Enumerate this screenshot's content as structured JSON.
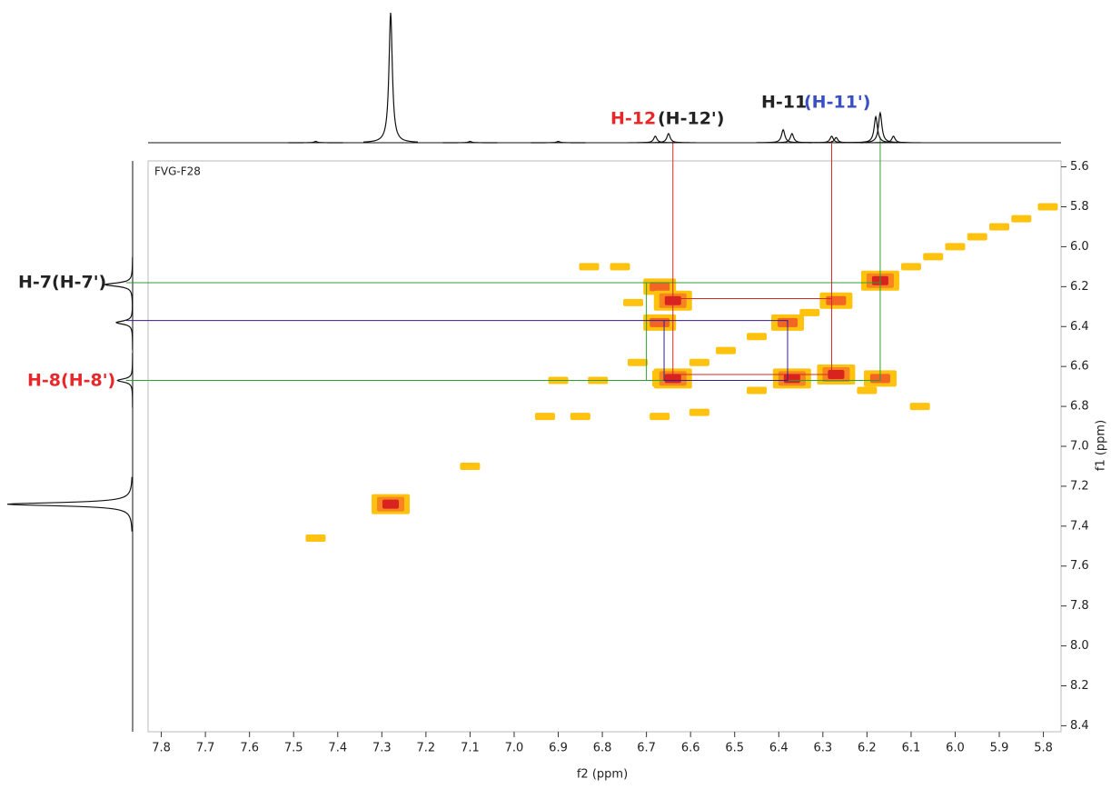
{
  "chart_data": {
    "type": "nmr2d",
    "annotation": "FVG-F28",
    "x_label": "f2 (ppm)",
    "y_label": "f1 (ppm)",
    "xlim": [
      7.83,
      5.76
    ],
    "ylim": [
      5.57,
      8.43
    ],
    "xticks": [
      7.8,
      7.7,
      7.6,
      7.5,
      7.4,
      7.3,
      7.2,
      7.1,
      {
        "value": 7,
        "label": "7.0"
      },
      6.9,
      6.8,
      6.7,
      6.6,
      6.5,
      6.4,
      6.3,
      6.2,
      6.1,
      {
        "value": 6,
        "label": "6.0"
      },
      5.9,
      5.8
    ],
    "yticks": [
      5.6,
      5.8,
      {
        "value": 6,
        "label": "6.0"
      },
      6.2,
      6.4,
      6.6,
      6.8,
      {
        "value": 7,
        "label": "7.0"
      },
      7.2,
      7.4,
      7.6,
      7.8,
      {
        "value": 8,
        "label": "8.0"
      },
      8.2,
      8.4
    ],
    "peaks": {
      "x": [
        7.28,
        7.45,
        7.1,
        6.65,
        6.58,
        6.52,
        6.45,
        6.38,
        6.33,
        6.27,
        6.17,
        6.1,
        6.05,
        6.0,
        5.95,
        5.9,
        5.85,
        5.79,
        6.67,
        6.64,
        6.67,
        6.64,
        6.37,
        6.27,
        6.17,
        6.83,
        6.76,
        6.9,
        6.81,
        6.93,
        6.85,
        6.67,
        6.58,
        6.72,
        6.73,
        6.45,
        6.2,
        6.08
      ],
      "y": [
        7.29,
        7.46,
        7.1,
        6.66,
        6.58,
        6.52,
        6.45,
        6.38,
        6.33,
        6.27,
        6.17,
        6.1,
        6.05,
        6.0,
        5.95,
        5.9,
        5.86,
        5.8,
        6.2,
        6.27,
        6.38,
        6.66,
        6.66,
        6.64,
        6.66,
        6.1,
        6.1,
        6.67,
        6.67,
        6.85,
        6.85,
        6.85,
        6.83,
        6.58,
        6.28,
        6.72,
        6.72,
        6.8
      ],
      "intensity": [
        3,
        1,
        1,
        2,
        1,
        1,
        1,
        2,
        1,
        2,
        3,
        1,
        1,
        1,
        1,
        1,
        1,
        1,
        2,
        3,
        2,
        3,
        3,
        3,
        2,
        1,
        1,
        1,
        1,
        1,
        1,
        1,
        1,
        1,
        1,
        1,
        1,
        1
      ]
    },
    "top_spectrum": {
      "x": [
        7.28,
        7.45,
        7.1,
        6.9,
        6.68,
        6.65,
        6.39,
        6.37,
        6.28,
        6.27,
        6.18,
        6.17,
        6.14
      ],
      "height": [
        1.0,
        0.01,
        0.01,
        0.01,
        0.05,
        0.07,
        0.1,
        0.07,
        0.05,
        0.04,
        0.2,
        0.23,
        0.05
      ]
    },
    "left_spectrum": {
      "y": [
        7.29,
        6.19,
        6.38,
        6.67
      ],
      "height": [
        1.0,
        0.22,
        0.13,
        0.12
      ]
    },
    "guides": [
      {
        "color": "#2ca02c",
        "x": [
          7.88,
          6.17
        ],
        "y": [
          6.18,
          6.18
        ]
      },
      {
        "color": "#2ca02c",
        "x": [
          7.88,
          6.17
        ],
        "y": [
          6.67,
          6.67
        ]
      },
      {
        "color": "#2ca02c",
        "x": [
          6.17,
          6.17
        ],
        "y": [
          5.45,
          6.67
        ]
      },
      {
        "color": "#2ca02c",
        "x": [
          6.7,
          6.7
        ],
        "y": [
          6.18,
          6.67
        ]
      },
      {
        "color": "#d62728",
        "x": [
          6.64,
          6.64,
          6.28,
          6.28
        ],
        "y": [
          5.47,
          6.64,
          6.64,
          5.47
        ]
      },
      {
        "color": "#d62728",
        "x": [
          6.64,
          6.28
        ],
        "y": [
          6.26,
          6.26
        ]
      },
      {
        "color": "#3b1c8c",
        "x": [
          7.88,
          6.38,
          6.38,
          6.66,
          6.66
        ],
        "y": [
          6.37,
          6.37,
          6.67,
          6.67,
          6.37
        ]
      }
    ],
    "labels": {
      "h12": "H-12",
      "h12p": "(H-12')",
      "h11": "H-11",
      "h11p": "(H-11')",
      "h7": "H-7(H-7')",
      "h8": "H-8(H-8')"
    }
  }
}
